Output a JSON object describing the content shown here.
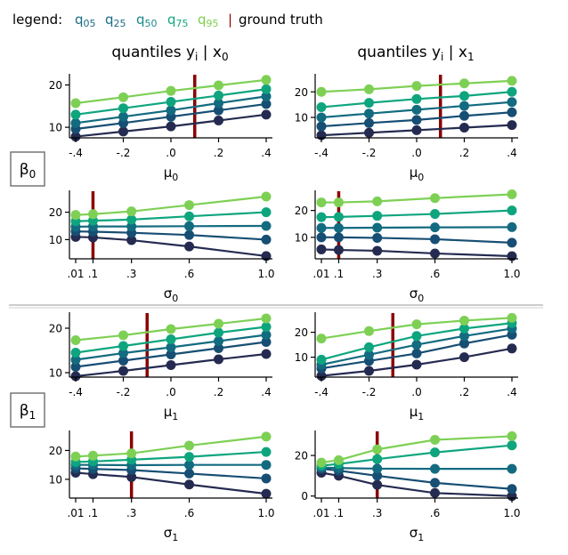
{
  "legend": {
    "prefix": "legend:",
    "items": [
      {
        "base": "q",
        "sub": "05",
        "color": "#1a6b86"
      },
      {
        "base": "q",
        "sub": "25",
        "color": "#1a6b86"
      },
      {
        "base": "q",
        "sub": "50",
        "color": "#1a8a88"
      },
      {
        "base": "q",
        "sub": "75",
        "color": "#13a67e"
      },
      {
        "base": "q",
        "sub": "95",
        "color": "#7ecf4c"
      }
    ],
    "separator": "|",
    "separator_color": "#8b0000",
    "truth_label": "ground truth"
  },
  "columns": [
    {
      "base": "quantiles y",
      "sub1": "i",
      "mid": " | x",
      "sub2": "0"
    },
    {
      "base": "quantiles y",
      "sub1": "i",
      "mid": " | x",
      "sub2": "1"
    }
  ],
  "rows": [
    {
      "base": "β",
      "sub": "0"
    },
    {
      "base": "β",
      "sub": "1"
    }
  ],
  "colors": {
    "series": [
      "#252b50",
      "#174e73",
      "#136b80",
      "#0ea57e",
      "#7ed055"
    ],
    "truth": "#8b0000",
    "axis": "#000000",
    "separator": "#cccccc",
    "row_box": "#777777"
  },
  "chart_data": [
    {
      "id": "b0-mu-x0",
      "type": "line",
      "x": [
        -0.4,
        -0.2,
        0.0,
        0.2,
        0.4
      ],
      "xticks": [
        "-.4",
        "-.2",
        ".0",
        ".2",
        ".4"
      ],
      "yticks": [
        "10",
        "20"
      ],
      "xlabel": {
        "base": "μ",
        "sub": "0"
      },
      "ylim": [
        7.5,
        22
      ],
      "truth_x": 0.1,
      "series": [
        {
          "name": "q05",
          "values": [
            7.8,
            9.0,
            10.2,
            11.6,
            13.0
          ]
        },
        {
          "name": "q25",
          "values": [
            9.6,
            11.0,
            12.5,
            14.0,
            15.5
          ]
        },
        {
          "name": "q50",
          "values": [
            11.0,
            12.5,
            14.0,
            15.7,
            17.3
          ]
        },
        {
          "name": "q75",
          "values": [
            13.0,
            14.5,
            16.0,
            17.5,
            19.0
          ]
        },
        {
          "name": "q95",
          "values": [
            15.7,
            17.1,
            18.6,
            19.9,
            21.2
          ]
        }
      ]
    },
    {
      "id": "b0-mu-x1",
      "type": "line",
      "x": [
        -0.4,
        -0.2,
        0.0,
        0.2,
        0.4
      ],
      "xticks": [
        "-.4",
        "-.2",
        ".0",
        ".2",
        ".4"
      ],
      "yticks": [
        "10",
        "20"
      ],
      "xlabel": {
        "base": "μ",
        "sub": "0"
      },
      "ylim": [
        2,
        26
      ],
      "truth_x": 0.1,
      "series": [
        {
          "name": "q05",
          "values": [
            3.0,
            4.0,
            5.0,
            6.0,
            7.0
          ]
        },
        {
          "name": "q25",
          "values": [
            6.5,
            7.8,
            9.0,
            10.6,
            12.0
          ]
        },
        {
          "name": "q50",
          "values": [
            10.0,
            11.5,
            13.0,
            14.5,
            16.0
          ]
        },
        {
          "name": "q75",
          "values": [
            14.0,
            15.7,
            17.2,
            18.4,
            20.0
          ]
        },
        {
          "name": "q95",
          "values": [
            20.0,
            21.0,
            22.3,
            23.3,
            24.3
          ]
        }
      ]
    },
    {
      "id": "b0-sigma-x0",
      "type": "line",
      "x": [
        0.01,
        0.1,
        0.3,
        0.6,
        1.0
      ],
      "xticks": [
        ".01",
        ".1",
        ".3",
        ".6",
        "1.0"
      ],
      "yticks": [
        "10",
        "20"
      ],
      "xlabel": {
        "base": "σ",
        "sub": "0"
      },
      "ylim": [
        3,
        27
      ],
      "truth_x": 0.1,
      "series": [
        {
          "name": "q05",
          "values": [
            11.0,
            10.8,
            9.8,
            7.5,
            4.0
          ]
        },
        {
          "name": "q25",
          "values": [
            13.0,
            12.9,
            12.5,
            11.7,
            10.0
          ]
        },
        {
          "name": "q50",
          "values": [
            14.7,
            14.8,
            14.8,
            14.9,
            15.0
          ]
        },
        {
          "name": "q75",
          "values": [
            16.7,
            16.9,
            17.3,
            18.5,
            20.0
          ]
        },
        {
          "name": "q95",
          "values": [
            19.0,
            19.3,
            20.3,
            22.6,
            25.7
          ]
        }
      ]
    },
    {
      "id": "b0-sigma-x1",
      "type": "line",
      "x": [
        0.01,
        0.1,
        0.3,
        0.6,
        1.0
      ],
      "xticks": [
        ".01",
        ".1",
        ".3",
        ".6",
        "1.0"
      ],
      "yticks": [
        "10",
        "20"
      ],
      "xlabel": {
        "base": "σ",
        "sub": "0"
      },
      "ylim": [
        2,
        26.5
      ],
      "truth_x": 0.1,
      "series": [
        {
          "name": "q05",
          "values": [
            5.5,
            5.3,
            5.0,
            4.0,
            3.0
          ]
        },
        {
          "name": "q25",
          "values": [
            10.0,
            10.0,
            9.8,
            9.3,
            8.0
          ]
        },
        {
          "name": "q50",
          "values": [
            13.5,
            13.5,
            13.6,
            13.7,
            13.8
          ]
        },
        {
          "name": "q75",
          "values": [
            17.5,
            17.6,
            18.0,
            18.7,
            20.0
          ]
        },
        {
          "name": "q95",
          "values": [
            23.0,
            23.0,
            23.4,
            24.6,
            26.0
          ]
        }
      ]
    },
    {
      "id": "b1-mu-x0",
      "type": "line",
      "x": [
        -0.4,
        -0.2,
        0.0,
        0.2,
        0.4
      ],
      "xticks": [
        "-.4",
        "-.2",
        ".0",
        ".2",
        ".4"
      ],
      "yticks": [
        "10",
        "20"
      ],
      "xlabel": {
        "base": "μ",
        "sub": "1"
      },
      "ylim": [
        9,
        23
      ],
      "truth_x": -0.1,
      "series": [
        {
          "name": "q05",
          "values": [
            9.2,
            10.4,
            11.7,
            13.0,
            14.2
          ]
        },
        {
          "name": "q25",
          "values": [
            11.3,
            12.7,
            14.1,
            15.5,
            16.9
          ]
        },
        {
          "name": "q50",
          "values": [
            12.9,
            14.4,
            15.7,
            17.1,
            18.5
          ]
        },
        {
          "name": "q75",
          "values": [
            14.5,
            16.0,
            17.5,
            19.0,
            20.3
          ]
        },
        {
          "name": "q95",
          "values": [
            17.3,
            18.4,
            19.8,
            21.0,
            22.2
          ]
        }
      ]
    },
    {
      "id": "b1-mu-x1",
      "type": "line",
      "x": [
        -0.4,
        -0.2,
        0.0,
        0.2,
        0.4
      ],
      "xticks": [
        "-.4",
        "-.2",
        ".0",
        ".2",
        ".4"
      ],
      "yticks": [
        "10",
        "20"
      ],
      "xlabel": {
        "base": "μ",
        "sub": "1"
      },
      "ylim": [
        2,
        27
      ],
      "truth_x": -0.1,
      "series": [
        {
          "name": "q05",
          "values": [
            2.5,
            4.5,
            7.0,
            10.0,
            13.5
          ]
        },
        {
          "name": "q25",
          "values": [
            5.5,
            8.5,
            11.5,
            15.5,
            19.0
          ]
        },
        {
          "name": "q50",
          "values": [
            7.0,
            11.0,
            15.0,
            18.5,
            21.5
          ]
        },
        {
          "name": "q75",
          "values": [
            9.0,
            14.0,
            18.5,
            21.5,
            23.7
          ]
        },
        {
          "name": "q95",
          "values": [
            17.5,
            20.5,
            23.2,
            24.7,
            25.8
          ]
        }
      ]
    },
    {
      "id": "b1-sigma-x0",
      "type": "line",
      "x": [
        0.01,
        0.1,
        0.3,
        0.6,
        1.0
      ],
      "xticks": [
        ".01",
        ".1",
        ".3",
        ".6",
        "1.0"
      ],
      "yticks": [
        "10",
        "20"
      ],
      "xlabel": {
        "base": "σ",
        "sub": "1"
      },
      "ylim": [
        3.5,
        26
      ],
      "truth_x": 0.3,
      "series": [
        {
          "name": "q05",
          "values": [
            12.3,
            11.8,
            10.8,
            8.2,
            5.0
          ]
        },
        {
          "name": "q25",
          "values": [
            13.8,
            13.6,
            13.2,
            12.0,
            10.3
          ]
        },
        {
          "name": "q50",
          "values": [
            15.0,
            15.0,
            14.9,
            15.0,
            15.0
          ]
        },
        {
          "name": "q75",
          "values": [
            16.0,
            16.2,
            16.8,
            17.8,
            19.5
          ]
        },
        {
          "name": "q95",
          "values": [
            17.9,
            18.2,
            19.0,
            21.7,
            24.8
          ]
        }
      ]
    },
    {
      "id": "b1-sigma-x1",
      "type": "line",
      "x": [
        0.01,
        0.1,
        0.3,
        0.6,
        1.0
      ],
      "xticks": [
        ".01",
        ".1",
        ".3",
        ".6",
        "1.0"
      ],
      "yticks": [
        "0",
        "20"
      ],
      "xlabel": {
        "base": "σ",
        "sub": "1"
      },
      "ylim": [
        -1,
        31
      ],
      "truth_x": 0.3,
      "series": [
        {
          "name": "q05",
          "values": [
            11.5,
            10.0,
            5.5,
            1.5,
            0.0
          ]
        },
        {
          "name": "q25",
          "values": [
            13.5,
            12.5,
            10.0,
            6.5,
            3.5
          ]
        },
        {
          "name": "q50",
          "values": [
            14.0,
            13.8,
            13.5,
            13.4,
            13.4
          ]
        },
        {
          "name": "q75",
          "values": [
            15.0,
            15.8,
            18.2,
            21.5,
            25.0
          ]
        },
        {
          "name": "q95",
          "values": [
            16.5,
            17.7,
            23.0,
            27.7,
            29.5
          ]
        }
      ]
    }
  ]
}
